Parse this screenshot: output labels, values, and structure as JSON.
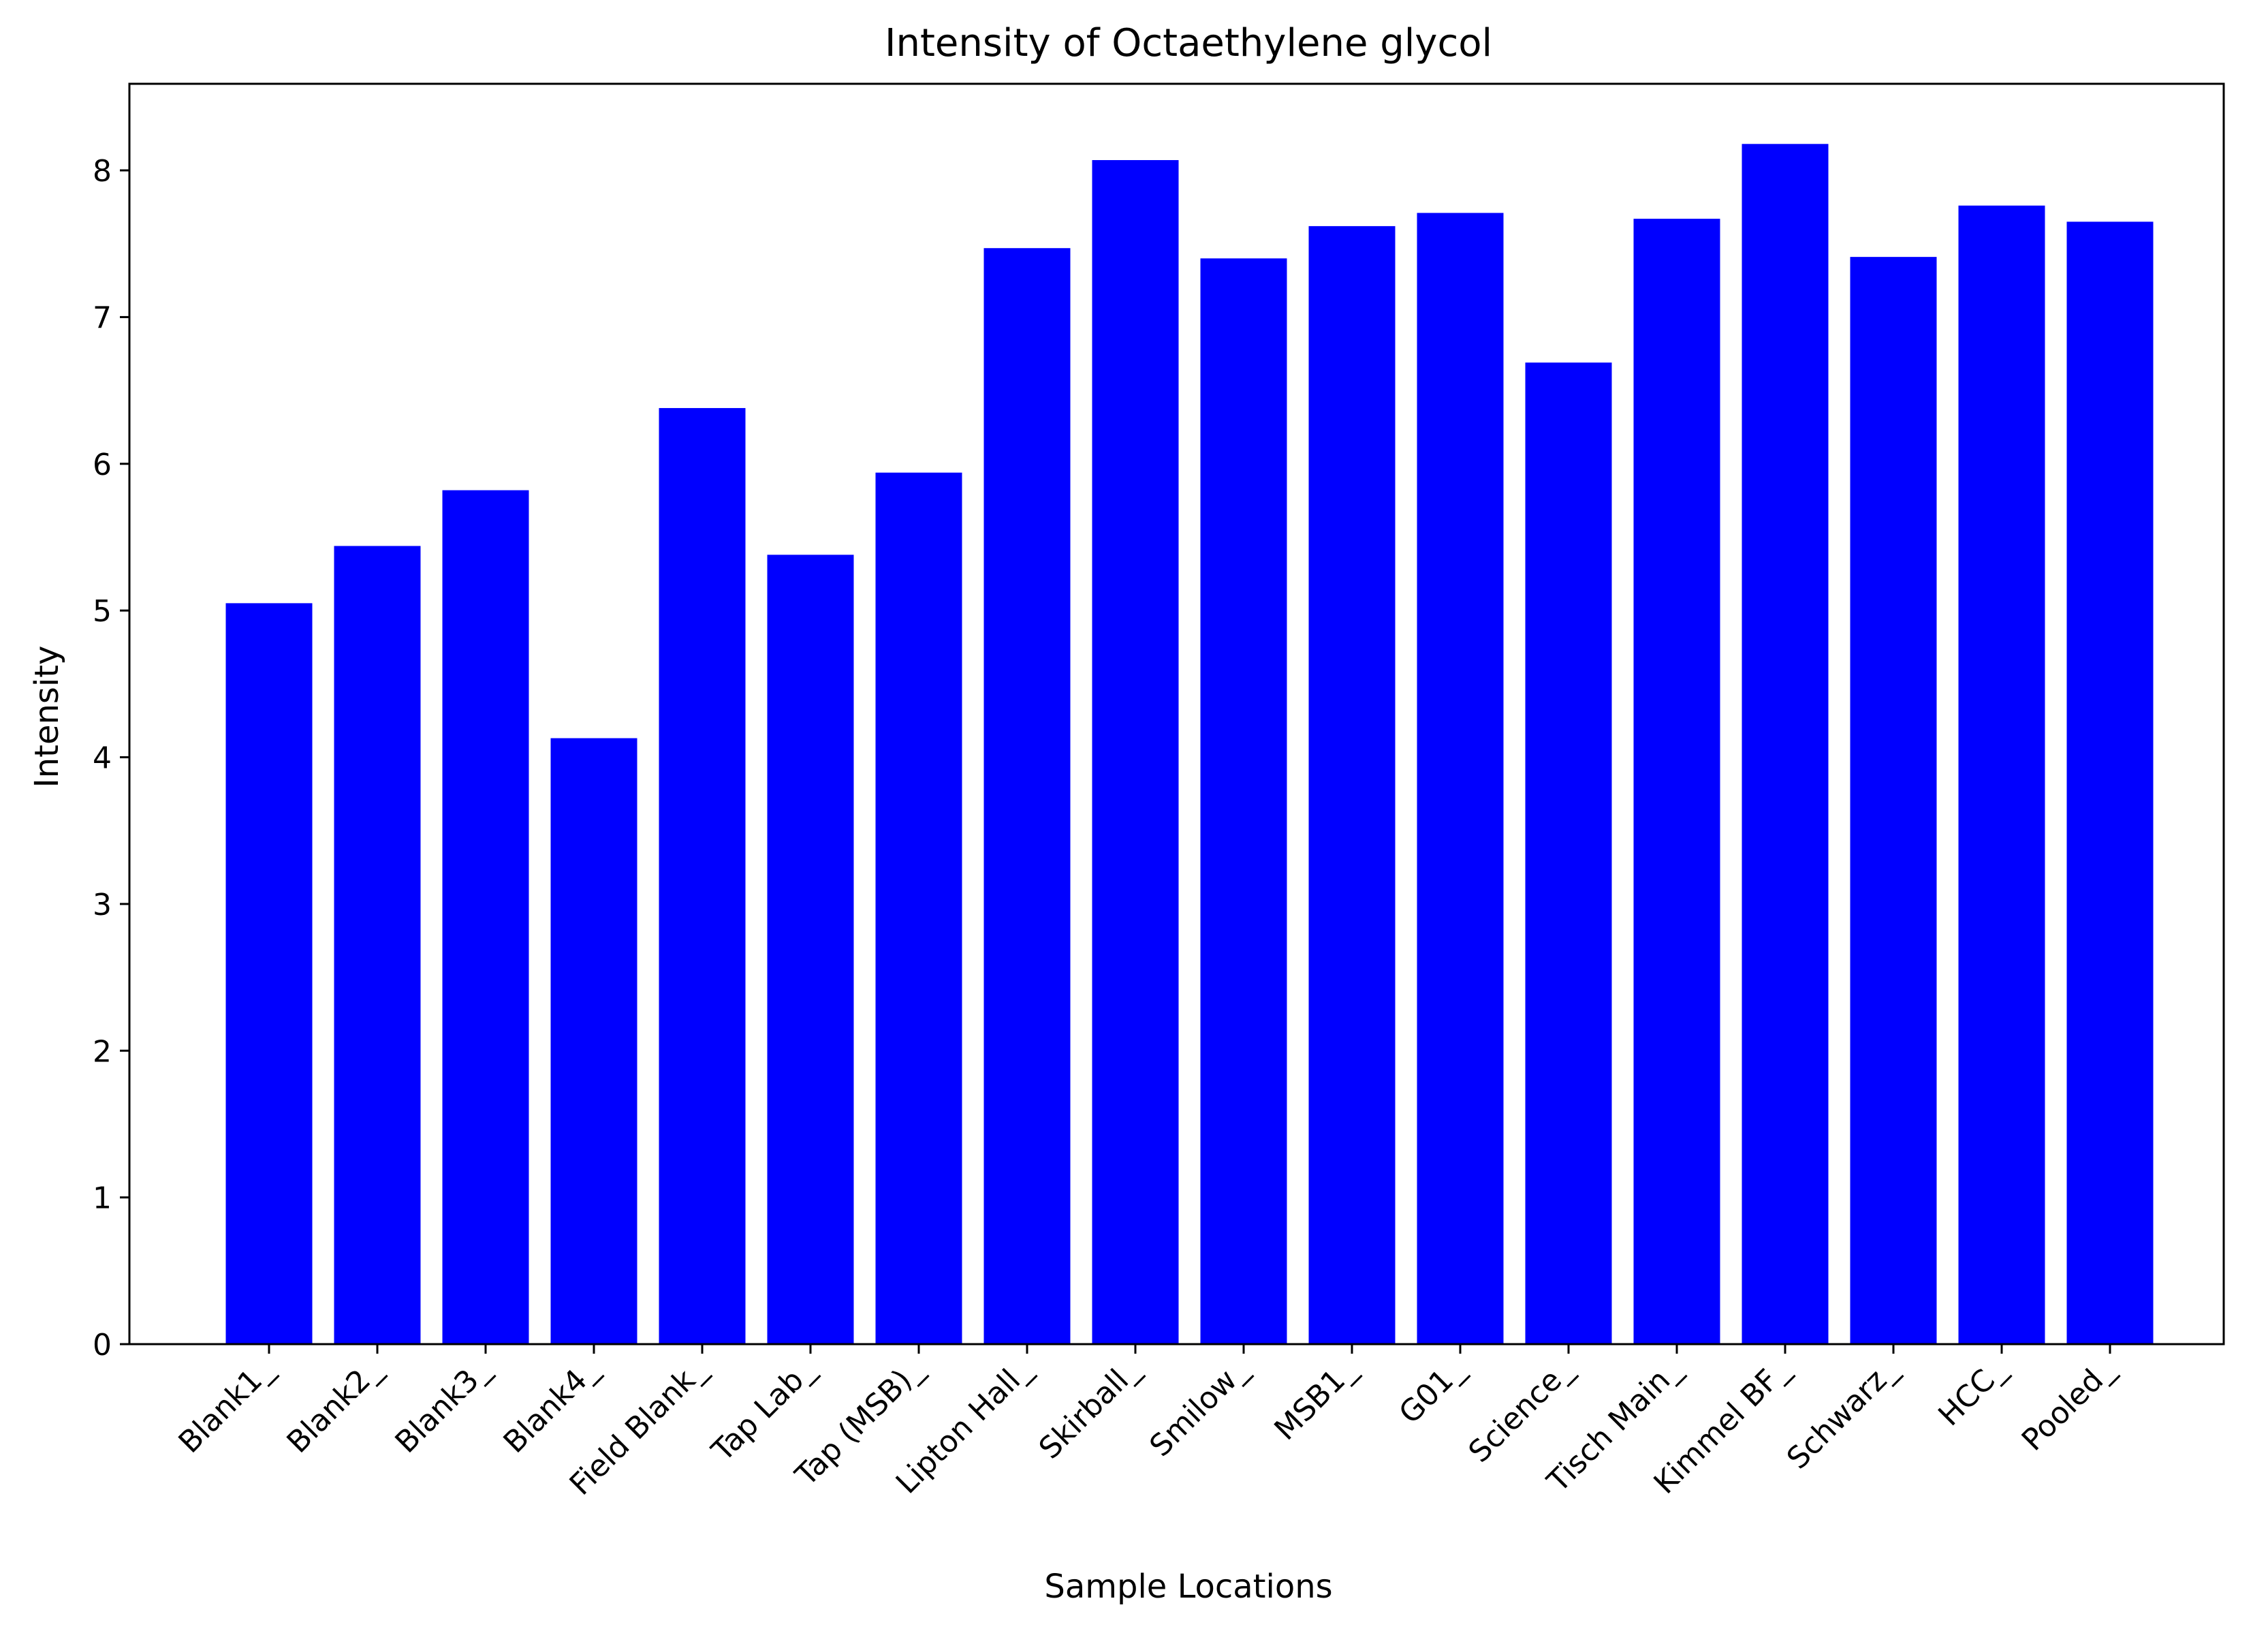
{
  "chart_data": {
    "type": "bar",
    "title": "Intensity of Octaethylene glycol",
    "xlabel": "Sample Locations",
    "ylabel": "Intensity",
    "categories": [
      "Blank1_",
      "Blank2_",
      "Blank3_",
      "Blank4_",
      "Field Blank_",
      "Tap Lab_",
      "Tap (MSB)_",
      "Lipton Hall_",
      "Skirball_",
      "Smilow_",
      "MSB1_",
      "G01_",
      "Science_",
      "Tisch Main_",
      "Kimmel BF_",
      "Schwarz_",
      "HCC_",
      "Pooled_"
    ],
    "values": [
      5.05,
      5.44,
      5.82,
      4.13,
      6.38,
      5.38,
      5.94,
      7.47,
      8.07,
      7.4,
      7.62,
      7.71,
      6.69,
      7.67,
      8.18,
      7.41,
      7.76,
      7.65
    ],
    "ylim": [
      0,
      8.59
    ],
    "yticks": [
      0,
      1,
      2,
      3,
      4,
      5,
      6,
      7,
      8
    ],
    "grid": false,
    "bar_color": "#0000ff"
  }
}
